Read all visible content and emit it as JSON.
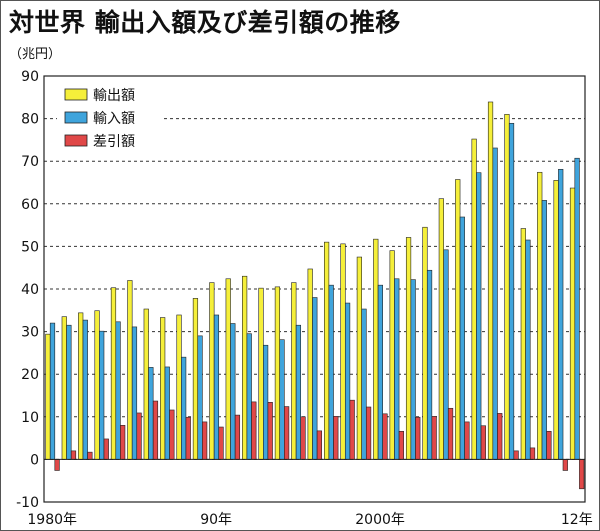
{
  "title": "対世界 輸出入額及び差引額の推移",
  "unit": "（兆円）",
  "chart_data": {
    "type": "bar",
    "title": "対世界 輸出入額及び差引額の推移",
    "ylabel": "（兆円）",
    "ylim": [
      -10,
      90
    ],
    "yticks": [
      -10,
      0,
      10,
      20,
      30,
      40,
      50,
      60,
      70,
      80,
      90
    ],
    "grid": "horizontal dashed",
    "legend_position": "top-left",
    "x_tick_labels": [
      {
        "label": "1980年",
        "index": 0
      },
      {
        "label": "90年",
        "index": 10
      },
      {
        "label": "2000年",
        "index": 20
      },
      {
        "label": "12年",
        "index": 32
      }
    ],
    "categories": [
      1980,
      1981,
      1982,
      1983,
      1984,
      1985,
      1986,
      1987,
      1988,
      1989,
      1990,
      1991,
      1992,
      1993,
      1994,
      1995,
      1996,
      1997,
      1998,
      1999,
      2000,
      2001,
      2002,
      2003,
      2004,
      2005,
      2006,
      2007,
      2008,
      2009,
      2010,
      2011,
      2012
    ],
    "series": [
      {
        "name": "輸出額",
        "color": "#f5ef3a",
        "values": [
          29.4,
          33.5,
          34.4,
          34.9,
          40.3,
          42.0,
          35.3,
          33.3,
          33.9,
          37.8,
          41.5,
          42.4,
          43.0,
          40.2,
          40.5,
          41.5,
          44.7,
          51.0,
          50.6,
          47.5,
          51.7,
          49.0,
          52.1,
          54.5,
          61.2,
          65.7,
          75.2,
          83.9,
          81.0,
          54.2,
          67.4,
          65.5,
          63.7
        ]
      },
      {
        "name": "輸入額",
        "color": "#3fa4dc",
        "values": [
          32.0,
          31.5,
          32.7,
          30.1,
          32.3,
          31.1,
          21.6,
          21.7,
          24.0,
          29.0,
          33.9,
          31.9,
          29.5,
          26.8,
          28.1,
          31.5,
          38.0,
          40.9,
          36.7,
          35.3,
          40.9,
          42.4,
          42.2,
          44.4,
          49.2,
          56.9,
          67.3,
          73.1,
          78.9,
          51.5,
          60.8,
          68.1,
          70.7
        ]
      },
      {
        "name": "差引額",
        "color": "#e04848",
        "values": [
          -2.6,
          2.0,
          1.7,
          4.8,
          8.0,
          10.9,
          13.7,
          11.6,
          9.9,
          8.8,
          7.6,
          10.4,
          13.5,
          13.4,
          12.4,
          10.0,
          6.7,
          10.1,
          13.9,
          12.3,
          10.7,
          6.6,
          9.9,
          10.1,
          12.0,
          8.8,
          7.9,
          10.8,
          2.0,
          2.7,
          6.6,
          -2.6,
          -6.9
        ]
      }
    ]
  }
}
